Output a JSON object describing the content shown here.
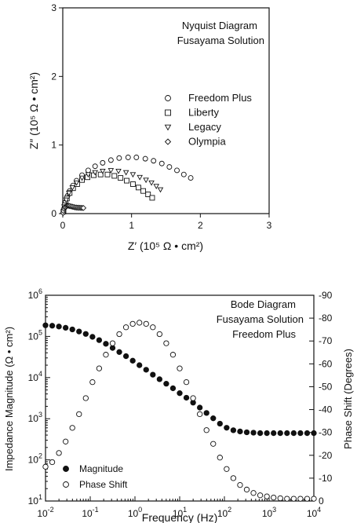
{
  "chart_data": [
    {
      "type": "scatter",
      "title": "Nyquist Diagram",
      "subtitle": "Fusayama Solution",
      "xlabel": "Z′ (10⁵ Ω • cm²)",
      "ylabel": "Z″ (10⁵ Ω • cm²)",
      "xlim": [
        0,
        3
      ],
      "ylim": [
        0,
        3
      ],
      "xticks": [
        "0",
        "1",
        "2",
        "3"
      ],
      "yticks": [
        "0",
        "1",
        "2",
        "3"
      ],
      "legend_position": "right",
      "series": [
        {
          "name": "Freedom Plus",
          "marker": "circle",
          "x": [
            0.01,
            0.02,
            0.04,
            0.07,
            0.1,
            0.15,
            0.2,
            0.28,
            0.37,
            0.47,
            0.58,
            0.7,
            0.82,
            0.95,
            1.07,
            1.2,
            1.32,
            1.44,
            1.55,
            1.66,
            1.76,
            1.86
          ],
          "y": [
            0.02,
            0.08,
            0.17,
            0.26,
            0.33,
            0.41,
            0.48,
            0.56,
            0.63,
            0.69,
            0.74,
            0.78,
            0.81,
            0.82,
            0.82,
            0.8,
            0.77,
            0.73,
            0.68,
            0.63,
            0.57,
            0.52
          ]
        },
        {
          "name": "Liberty",
          "marker": "square",
          "x": [
            0.01,
            0.03,
            0.06,
            0.1,
            0.15,
            0.21,
            0.28,
            0.36,
            0.45,
            0.55,
            0.65,
            0.75,
            0.84,
            0.93,
            1.02,
            1.1,
            1.17,
            1.24,
            1.3
          ],
          "y": [
            0.03,
            0.12,
            0.22,
            0.3,
            0.37,
            0.43,
            0.49,
            0.53,
            0.56,
            0.57,
            0.57,
            0.55,
            0.52,
            0.48,
            0.43,
            0.38,
            0.33,
            0.28,
            0.23
          ]
        },
        {
          "name": "Legacy",
          "marker": "triangle-down",
          "x": [
            0.02,
            0.05,
            0.09,
            0.14,
            0.2,
            0.28,
            0.37,
            0.47,
            0.58,
            0.7,
            0.81,
            0.92,
            1.02,
            1.12,
            1.21,
            1.29,
            1.36,
            1.42
          ],
          "y": [
            0.1,
            0.2,
            0.3,
            0.38,
            0.45,
            0.52,
            0.57,
            0.6,
            0.62,
            0.63,
            0.62,
            0.6,
            0.57,
            0.53,
            0.49,
            0.45,
            0.4,
            0.35
          ]
        },
        {
          "name": "Olympia",
          "marker": "diamond",
          "x": [
            0.005,
            0.01,
            0.02,
            0.03,
            0.04,
            0.055,
            0.07,
            0.085,
            0.1,
            0.12,
            0.14,
            0.16,
            0.18,
            0.2,
            0.22,
            0.24,
            0.26,
            0.28,
            0.3
          ],
          "y": [
            0.01,
            0.04,
            0.07,
            0.09,
            0.1,
            0.11,
            0.115,
            0.115,
            0.11,
            0.105,
            0.1,
            0.095,
            0.09,
            0.088,
            0.086,
            0.085,
            0.084,
            0.083,
            0.082
          ]
        }
      ]
    },
    {
      "type": "scatter",
      "title": "Bode Diagram",
      "subtitle": "Fusayama Solution",
      "subtitle2": "Freedom Plus",
      "xlabel": "Frequency (Hz)",
      "ylabel": "Impedance Magnitude (Ω • cm²)",
      "y2label": "Phase Shift (Degrees)",
      "xscale": "log",
      "xlim": [
        0.01,
        10000
      ],
      "yscale": "log",
      "ylim": [
        10,
        1000000
      ],
      "y2lim": [
        0,
        -90
      ],
      "xticks": [
        {
          "base": "10",
          "exp": "-2"
        },
        {
          "base": "10",
          "exp": "-1"
        },
        {
          "base": "10",
          "exp": "0"
        },
        {
          "base": "10",
          "exp": "1"
        },
        {
          "base": "10",
          "exp": "2"
        },
        {
          "base": "10",
          "exp": "3"
        },
        {
          "base": "10",
          "exp": "4"
        }
      ],
      "yticks": [
        {
          "base": "10",
          "exp": "1"
        },
        {
          "base": "10",
          "exp": "2"
        },
        {
          "base": "10",
          "exp": "3"
        },
        {
          "base": "10",
          "exp": "4"
        },
        {
          "base": "10",
          "exp": "5"
        },
        {
          "base": "10",
          "exp": "6"
        }
      ],
      "y2ticks": [
        "0",
        "-10",
        "-20",
        "-30",
        "-40",
        "-50",
        "-60",
        "-70",
        "-80",
        "-90"
      ],
      "legend_position": "bottom-left",
      "series": [
        {
          "name": "Magnitude",
          "marker": "filled-circle",
          "axis": "left",
          "log_x": [
            -2,
            -1.85,
            -1.7,
            -1.55,
            -1.4,
            -1.25,
            -1.1,
            -0.95,
            -0.8,
            -0.65,
            -0.5,
            -0.35,
            -0.2,
            -0.05,
            0.1,
            0.25,
            0.4,
            0.55,
            0.7,
            0.85,
            1,
            1.15,
            1.3,
            1.45,
            1.6,
            1.75,
            1.9,
            2.05,
            2.2,
            2.35,
            2.5,
            2.65,
            2.8,
            2.95,
            3.1,
            3.25,
            3.4,
            3.55,
            3.7,
            3.85,
            4
          ],
          "log_y": [
            5.27,
            5.26,
            5.24,
            5.21,
            5.17,
            5.12,
            5.06,
            4.99,
            4.91,
            4.82,
            4.72,
            4.62,
            4.52,
            4.41,
            4.3,
            4.19,
            4.07,
            3.96,
            3.85,
            3.74,
            3.62,
            3.51,
            3.39,
            3.27,
            3.14,
            3.01,
            2.88,
            2.78,
            2.72,
            2.69,
            2.67,
            2.66,
            2.65,
            2.65,
            2.65,
            2.65,
            2.65,
            2.65,
            2.65,
            2.65,
            2.65
          ]
        },
        {
          "name": "Phase Shift",
          "marker": "circle",
          "axis": "right",
          "log_x": [
            -2,
            -1.85,
            -1.7,
            -1.55,
            -1.4,
            -1.25,
            -1.1,
            -0.95,
            -0.8,
            -0.65,
            -0.5,
            -0.35,
            -0.2,
            -0.05,
            0.1,
            0.25,
            0.4,
            0.55,
            0.7,
            0.85,
            1,
            1.15,
            1.3,
            1.45,
            1.6,
            1.75,
            1.9,
            2.05,
            2.2,
            2.35,
            2.5,
            2.65,
            2.8,
            2.95,
            3.1,
            3.25,
            3.4,
            3.55,
            3.7,
            3.85,
            4
          ],
          "y": [
            -15,
            -17,
            -21,
            -26,
            -32,
            -38,
            -45,
            -52,
            -58,
            -64,
            -69,
            -73,
            -76,
            -77.5,
            -78,
            -77.5,
            -76,
            -73,
            -69,
            -64,
            -58,
            -52,
            -45,
            -38,
            -31,
            -25,
            -19,
            -14,
            -10,
            -7,
            -5,
            -3.5,
            -2.5,
            -2,
            -1.5,
            -1.2,
            -1,
            -1,
            -1,
            -1,
            -1
          ]
        }
      ]
    }
  ]
}
